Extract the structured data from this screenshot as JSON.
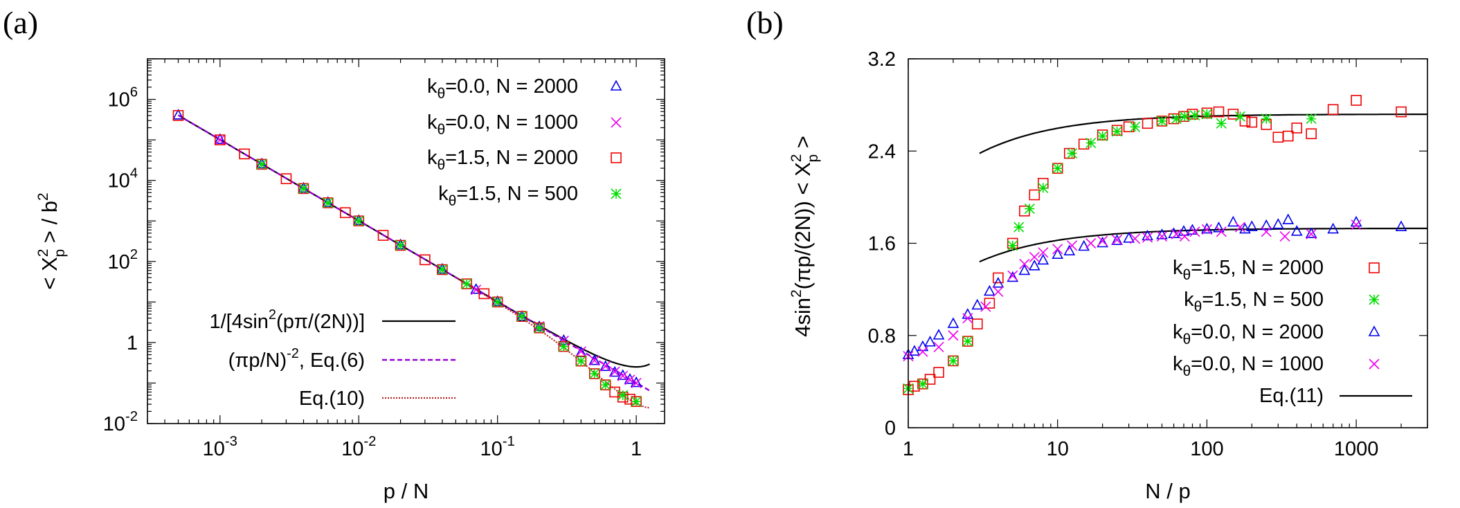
{
  "chart_data": [
    {
      "panel_label": "(a)",
      "type": "scatter",
      "xscale": "log",
      "yscale": "log",
      "xlim": [
        0.0003,
        1.6
      ],
      "ylim": [
        0.01,
        10000000
      ],
      "xticks": [
        {
          "value": 0.001,
          "base": "10",
          "exp": "-3"
        },
        {
          "value": 0.01,
          "base": "10",
          "exp": "-2"
        },
        {
          "value": 0.1,
          "base": "10",
          "exp": "-1"
        },
        {
          "value": 1,
          "base": "1",
          "exp": ""
        }
      ],
      "yticks": [
        {
          "value": 0.01,
          "base": "10",
          "exp": "-2"
        },
        {
          "value": 1,
          "base": "1",
          "exp": ""
        },
        {
          "value": 100,
          "base": "10",
          "exp": "2"
        },
        {
          "value": 10000,
          "base": "10",
          "exp": "4"
        },
        {
          "value": 1000000,
          "base": "10",
          "exp": "6"
        }
      ],
      "xlabel": "p / N",
      "ylabel": {
        "pre": "< X",
        "sup": "2",
        "sub": "p",
        "post": " > / b",
        "sup2": "2"
      },
      "legend": "top-right",
      "series": [
        {
          "legend": {
            "k": "k",
            "sub": "θ",
            "rest": "=0.0, N = 2000"
          },
          "marker": "triangle",
          "color": "#0000ee",
          "x": [
            0.0005,
            0.001,
            0.002,
            0.004,
            0.006,
            0.01,
            0.02,
            0.04,
            0.07,
            0.1,
            0.15,
            0.2,
            0.3,
            0.4,
            0.5,
            0.6,
            0.7,
            0.8,
            0.9,
            1.0
          ],
          "y": [
            400000,
            100000,
            25000,
            6300,
            2800,
            1000,
            250,
            63,
            20,
            10,
            4.3,
            2.4,
            1.1,
            0.55,
            0.35,
            0.25,
            0.18,
            0.15,
            0.12,
            0.1
          ]
        },
        {
          "legend": {
            "k": "k",
            "sub": "θ",
            "rest": "=0.0, N = 1000"
          },
          "marker": "cross",
          "color": "#ee00ee",
          "x": [
            0.001,
            0.002,
            0.004,
            0.01,
            0.02,
            0.04,
            0.07,
            0.1,
            0.15,
            0.2,
            0.3,
            0.4,
            0.5,
            0.6,
            0.7,
            0.8,
            0.9,
            1.0
          ],
          "y": [
            100000,
            25000,
            6300,
            1000,
            250,
            63,
            20,
            10,
            4.4,
            2.5,
            1.1,
            0.6,
            0.36,
            0.26,
            0.19,
            0.15,
            0.12,
            0.1
          ]
        },
        {
          "legend": {
            "k": "k",
            "sub": "θ",
            "rest": "=1.5, N = 2000"
          },
          "marker": "square",
          "color": "#ee0000",
          "x": [
            0.0005,
            0.001,
            0.0015,
            0.002,
            0.003,
            0.004,
            0.006,
            0.008,
            0.01,
            0.015,
            0.02,
            0.03,
            0.04,
            0.06,
            0.08,
            0.1,
            0.15,
            0.2,
            0.3,
            0.4,
            0.5,
            0.6,
            0.7,
            0.8,
            0.9,
            1.0
          ],
          "y": [
            400000,
            100000,
            45000,
            25000,
            11000,
            6300,
            2800,
            1600,
            1000,
            440,
            250,
            110,
            63,
            28,
            16,
            10,
            4.4,
            2.3,
            0.8,
            0.35,
            0.17,
            0.09,
            0.06,
            0.045,
            0.04,
            0.035
          ]
        },
        {
          "legend": {
            "k": "k",
            "sub": "θ",
            "rest": "=1.5, N = 500"
          },
          "marker": "star",
          "color": "#00dd00",
          "x": [
            0.002,
            0.004,
            0.006,
            0.01,
            0.02,
            0.04,
            0.06,
            0.1,
            0.15,
            0.2,
            0.3,
            0.4,
            0.5,
            0.6,
            0.8,
            1.0
          ],
          "y": [
            25000,
            6300,
            2800,
            1000,
            250,
            63,
            28,
            10,
            4.4,
            2.3,
            0.8,
            0.35,
            0.17,
            0.09,
            0.05,
            0.035
          ]
        }
      ],
      "curves": [
        {
          "legend": {
            "pre": "1/[4sin",
            "sup": "2",
            "post": "(pπ/(2N))]"
          },
          "style": "solid",
          "color": "#000000",
          "formula": "exact"
        },
        {
          "legend": {
            "pre": "(πp/N)",
            "sup": "-2",
            "post": ", Eq.(6)"
          },
          "style": "dashed",
          "color": "#9400d3",
          "formula": "power"
        },
        {
          "legend": {
            "pre": "Eq.(10)",
            "sup": "",
            "post": ""
          },
          "style": "dotted",
          "color": "#b22222",
          "formula": "eq10"
        }
      ]
    },
    {
      "panel_label": "(b)",
      "type": "scatter",
      "xscale": "log",
      "yscale": "linear",
      "xlim": [
        1,
        3000
      ],
      "ylim": [
        0,
        3.2
      ],
      "xticks": [
        {
          "value": 1,
          "label": "1"
        },
        {
          "value": 10,
          "label": "10"
        },
        {
          "value": 100,
          "label": "100"
        },
        {
          "value": 1000,
          "label": "1000"
        }
      ],
      "yticks": [
        {
          "value": 0,
          "label": "0"
        },
        {
          "value": 0.8,
          "label": "0.8"
        },
        {
          "value": 1.6,
          "label": "1.6"
        },
        {
          "value": 2.4,
          "label": "2.4"
        },
        {
          "value": 3.2,
          "label": "3.2"
        }
      ],
      "xlabel": "N / p",
      "ylabel": {
        "pre": "4sin",
        "sup": "2",
        "mid": "(πp/(2N)) < X",
        "sup2": "2",
        "sub": "p",
        "post": " >"
      },
      "legend": "bottom-right",
      "series": [
        {
          "legend": {
            "k": "k",
            "sub": "θ",
            "rest": "=1.5, N = 2000"
          },
          "marker": "square",
          "color": "#ee0000",
          "x": [
            1,
            1.1,
            1.25,
            1.4,
            1.6,
            2,
            2.5,
            2.9,
            3.5,
            4,
            5,
            6,
            7,
            8,
            10,
            12,
            15,
            20,
            25,
            30,
            40,
            50,
            60,
            70,
            80,
            100,
            120,
            150,
            180,
            200,
            250,
            300,
            350,
            400,
            500,
            700,
            1000,
            2000
          ],
          "y": [
            0.33,
            0.36,
            0.38,
            0.42,
            0.48,
            0.58,
            0.75,
            0.9,
            1.08,
            1.3,
            1.6,
            1.88,
            2.02,
            2.12,
            2.25,
            2.38,
            2.46,
            2.54,
            2.58,
            2.61,
            2.64,
            2.66,
            2.68,
            2.7,
            2.72,
            2.73,
            2.74,
            2.72,
            2.66,
            2.65,
            2.63,
            2.52,
            2.53,
            2.6,
            2.55,
            2.76,
            2.84,
            2.74
          ]
        },
        {
          "legend": {
            "k": "k",
            "sub": "θ",
            "rest": "=1.5, N = 500"
          },
          "marker": "star",
          "color": "#00dd00",
          "x": [
            1,
            1.25,
            2,
            2.5,
            5,
            5.5,
            6.5,
            8,
            10,
            12.5,
            16.7,
            20,
            25,
            33,
            50,
            62.5,
            71,
            83,
            100,
            125,
            167,
            250,
            500
          ],
          "y": [
            0.34,
            0.38,
            0.58,
            0.75,
            1.58,
            1.74,
            1.9,
            2.08,
            2.25,
            2.38,
            2.47,
            2.53,
            2.57,
            2.61,
            2.66,
            2.68,
            2.7,
            2.71,
            2.72,
            2.64,
            2.7,
            2.68,
            2.68
          ]
        },
        {
          "legend": {
            "k": "k",
            "sub": "θ",
            "rest": "=0.0, N = 2000"
          },
          "marker": "triangle",
          "color": "#0000ee",
          "x": [
            1,
            1.1,
            1.25,
            1.4,
            1.6,
            2,
            2.5,
            2.9,
            3.5,
            4,
            5,
            6,
            7,
            8,
            10,
            12,
            15,
            20,
            25,
            30,
            40,
            50,
            60,
            70,
            80,
            100,
            120,
            150,
            180,
            200,
            250,
            300,
            350,
            400,
            500,
            700,
            1000,
            2000
          ],
          "y": [
            0.63,
            0.66,
            0.7,
            0.74,
            0.8,
            0.9,
            0.98,
            1.06,
            1.18,
            1.25,
            1.3,
            1.36,
            1.4,
            1.45,
            1.5,
            1.53,
            1.57,
            1.6,
            1.62,
            1.64,
            1.66,
            1.67,
            1.68,
            1.7,
            1.71,
            1.72,
            1.73,
            1.78,
            1.72,
            1.74,
            1.75,
            1.76,
            1.8,
            1.7,
            1.68,
            1.72,
            1.78,
            1.74
          ]
        },
        {
          "legend": {
            "k": "k",
            "sub": "θ",
            "rest": "=0.0, N = 1000"
          },
          "marker": "cross",
          "color": "#ee00ee",
          "x": [
            1,
            1.25,
            1.6,
            2,
            2.5,
            3.3,
            4,
            5,
            6,
            7,
            8,
            10,
            12.5,
            16.7,
            20,
            25,
            33,
            40,
            50,
            62.5,
            71,
            83,
            100,
            125,
            167,
            250,
            333,
            500,
            1000
          ],
          "y": [
            0.62,
            0.66,
            0.7,
            0.8,
            0.95,
            1.05,
            1.18,
            1.32,
            1.42,
            1.48,
            1.52,
            1.55,
            1.58,
            1.6,
            1.62,
            1.63,
            1.64,
            1.65,
            1.66,
            1.68,
            1.66,
            1.7,
            1.72,
            1.7,
            1.74,
            1.7,
            1.66,
            1.68,
            1.76
          ]
        }
      ],
      "curves": [
        {
          "legend": {
            "pre": "Eq.(11)",
            "sup": "",
            "post": ""
          },
          "style": "solid",
          "color": "#000000"
        }
      ]
    }
  ]
}
